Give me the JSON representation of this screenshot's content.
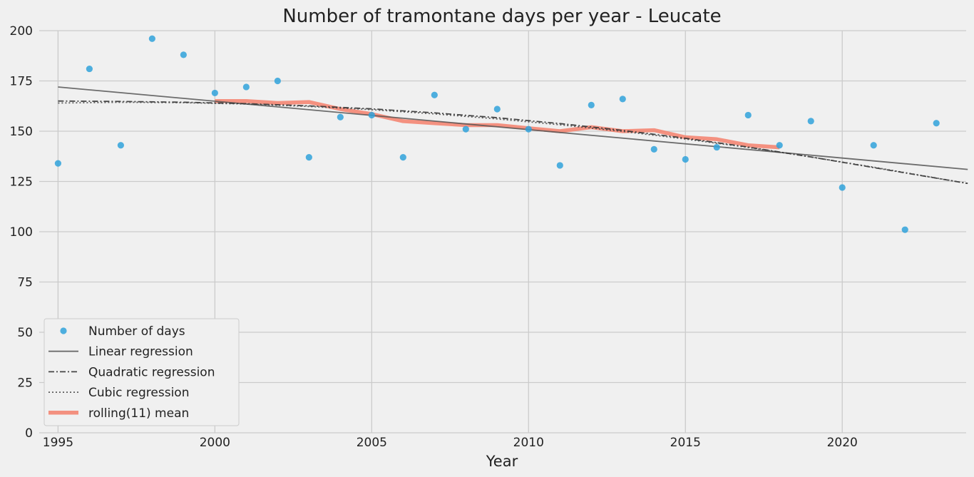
{
  "chart_data": {
    "type": "scatter",
    "title": "Number of tramontane days per year - Leucate",
    "xlabel": "Year",
    "ylabel": "",
    "xlim": [
      1994.4,
      2023.95
    ],
    "ylim": [
      0,
      200
    ],
    "xticks": [
      1995,
      2000,
      2005,
      2010,
      2015,
      2020
    ],
    "yticks": [
      0,
      25,
      50,
      75,
      100,
      125,
      150,
      175,
      200
    ],
    "grid": true,
    "legend_position": "lower-left",
    "series": [
      {
        "name": "Number of days",
        "style": "points",
        "color": "#30a2da",
        "x": [
          1995,
          1996,
          1997,
          1998,
          1999,
          2000,
          2001,
          2002,
          2003,
          2004,
          2005,
          2006,
          2007,
          2008,
          2009,
          2010,
          2011,
          2012,
          2013,
          2014,
          2015,
          2016,
          2017,
          2018,
          2019,
          2020,
          2021,
          2022,
          2023
        ],
        "y": [
          134,
          181,
          143,
          196,
          188,
          169,
          172,
          175,
          137,
          157,
          158,
          137,
          168,
          151,
          161,
          151,
          133,
          163,
          166,
          141,
          136,
          142,
          158,
          143,
          155,
          122,
          143,
          101,
          154
        ]
      },
      {
        "name": "Linear regression",
        "style": "solid",
        "color": "#555555",
        "x": [
          1995,
          2024
        ],
        "y": [
          172,
          131
        ]
      },
      {
        "name": "Quadratic regression",
        "style": "dashdot",
        "color": "#333333",
        "x": [
          1995,
          1997,
          1999,
          2001,
          2003,
          2005,
          2007,
          2009,
          2011,
          2013,
          2015,
          2017,
          2019,
          2021,
          2024
        ],
        "y": [
          165,
          164.8,
          164.4,
          163.7,
          162.6,
          161.1,
          159.1,
          156.7,
          153.8,
          150.4,
          146.5,
          142.1,
          137.2,
          131.9,
          124
        ]
      },
      {
        "name": "Cubic regression",
        "style": "dotted",
        "color": "#444444",
        "x": [
          1995,
          1997,
          1999,
          2001,
          2003,
          2005,
          2007,
          2009,
          2011,
          2013,
          2015,
          2017,
          2019,
          2021,
          2024
        ],
        "y": [
          164,
          164.4,
          164.2,
          163.5,
          162.3,
          160.7,
          158.6,
          156.1,
          153.2,
          149.9,
          146.1,
          141.9,
          137.2,
          132.1,
          124
        ]
      },
      {
        "name": "rolling(11) mean",
        "style": "thick",
        "color": "#f4806c",
        "x": [
          2000,
          2001,
          2002,
          2003,
          2004,
          2005,
          2006,
          2007,
          2008,
          2009,
          2010,
          2011,
          2012,
          2013,
          2014,
          2015,
          2016,
          2017,
          2018
        ],
        "y": [
          165,
          165,
          164,
          164.5,
          161,
          158.5,
          155,
          154,
          153,
          153,
          151.5,
          150,
          152,
          150,
          150.5,
          147,
          146,
          143,
          142
        ]
      }
    ]
  }
}
